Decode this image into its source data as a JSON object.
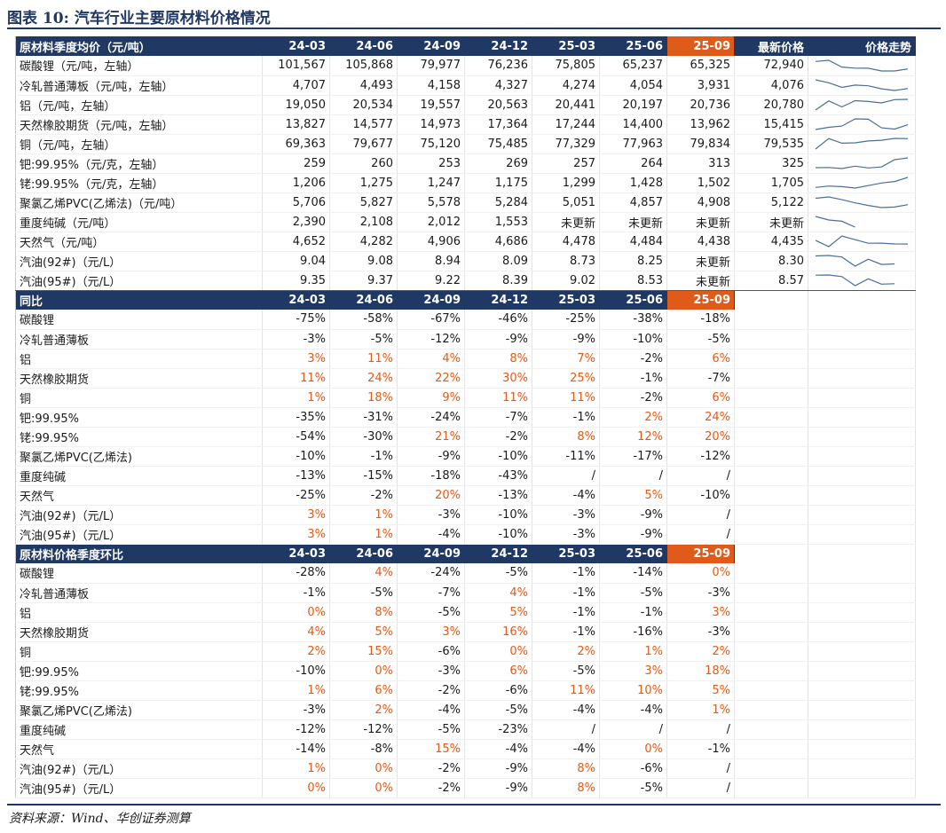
{
  "title": "图表 10:  汽车行业主要原材料价格情况",
  "source": "资料来源：Wind、华创证券测算",
  "colors": {
    "header_bg": "#1f3864",
    "highlight_bg": "#e05a1a",
    "positive": "#e05a1a",
    "spark": "#4a6e9a"
  },
  "section1": {
    "header": [
      "原材料季度均价（元/吨）",
      "24-03",
      "24-06",
      "24-09",
      "24-12",
      "25-03",
      "25-06",
      "25-09",
      "最新价格",
      "价格走势"
    ],
    "rows": [
      {
        "label": "碳酸锂（元/吨，左轴）",
        "values": [
          "101,567",
          "105,868",
          "79,977",
          "76,236",
          "75,805",
          "65,237",
          "65,325"
        ],
        "latest": "72,940",
        "trend": [
          101567,
          105868,
          79977,
          76236,
          75805,
          65237,
          65325,
          72940
        ]
      },
      {
        "label": "冷轧普通薄板（元/吨，左轴）",
        "values": [
          "4,707",
          "4,493",
          "4,158",
          "4,327",
          "4,274",
          "4,054",
          "3,931"
        ],
        "latest": "4,076",
        "trend": [
          4707,
          4493,
          4158,
          4327,
          4274,
          4054,
          3931,
          4076
        ]
      },
      {
        "label": "铝（元/吨，左轴）",
        "values": [
          "19,050",
          "20,534",
          "19,557",
          "20,563",
          "20,441",
          "20,197",
          "20,736"
        ],
        "latest": "20,780",
        "trend": [
          19050,
          20534,
          19557,
          20563,
          20441,
          20197,
          20736,
          20780
        ]
      },
      {
        "label": "天然橡胶期货（元/吨，左轴）",
        "values": [
          "13,827",
          "14,577",
          "14,973",
          "17,364",
          "17,244",
          "14,400",
          "13,962"
        ],
        "latest": "15,415",
        "trend": [
          13827,
          14577,
          14973,
          17364,
          17244,
          14400,
          13962,
          15415
        ]
      },
      {
        "label": "铜（元/吨，左轴）",
        "values": [
          "69,363",
          "79,677",
          "75,120",
          "75,485",
          "77,329",
          "77,963",
          "79,834"
        ],
        "latest": "79,535",
        "trend": [
          69363,
          79677,
          75120,
          75485,
          77329,
          77963,
          79834,
          79535
        ]
      },
      {
        "label": "钯:99.95%（元/克，左轴）",
        "values": [
          "259",
          "260",
          "253",
          "269",
          "257",
          "264",
          "313"
        ],
        "latest": "325",
        "trend": [
          259,
          260,
          253,
          269,
          257,
          264,
          313,
          325
        ]
      },
      {
        "label": "铑:99.95%（元/克，左轴）",
        "values": [
          "1,206",
          "1,275",
          "1,247",
          "1,175",
          "1,299",
          "1,428",
          "1,502"
        ],
        "latest": "1,705",
        "trend": [
          1206,
          1275,
          1247,
          1175,
          1299,
          1428,
          1502,
          1705
        ]
      },
      {
        "label": "聚氯乙烯PVC(乙烯法)（元/吨）",
        "values": [
          "5,706",
          "5,827",
          "5,578",
          "5,284",
          "5,051",
          "4,857",
          "4,908"
        ],
        "latest": "5,122",
        "trend": [
          5706,
          5827,
          5578,
          5284,
          5051,
          4857,
          4908,
          5122
        ]
      },
      {
        "label": "重度纯碱（元/吨）",
        "values": [
          "2,390",
          "2,108",
          "2,012",
          "1,553",
          "未更新",
          "未更新",
          "未更新"
        ],
        "latest": "未更新",
        "trend": [
          2390,
          2108,
          2012,
          1553
        ]
      },
      {
        "label": "天然气（元/吨）",
        "values": [
          "4,652",
          "4,282",
          "4,906",
          "4,686",
          "4,478",
          "4,484",
          "4,438"
        ],
        "latest": "4,435",
        "trend": [
          4652,
          4282,
          4906,
          4686,
          4478,
          4484,
          4438,
          4435
        ]
      },
      {
        "label": "汽油(92#)（元/L）",
        "values": [
          "9.04",
          "9.08",
          "8.94",
          "8.09",
          "8.73",
          "8.25",
          "未更新"
        ],
        "latest": "8.30",
        "trend": [
          9.04,
          9.08,
          8.94,
          8.09,
          8.73,
          8.25,
          8.3
        ]
      },
      {
        "label": "汽油(95#)（元/L）",
        "values": [
          "9.35",
          "9.37",
          "9.22",
          "8.39",
          "9.02",
          "8.53",
          "未更新"
        ],
        "latest": "8.57",
        "trend": [
          9.35,
          9.37,
          9.22,
          8.39,
          9.02,
          8.53,
          8.57
        ]
      }
    ]
  },
  "section2": {
    "header": [
      "同比",
      "24-03",
      "24-06",
      "24-09",
      "24-12",
      "25-03",
      "25-06",
      "25-09"
    ],
    "rows": [
      {
        "label": "碳酸锂",
        "values": [
          "-75%",
          "-58%",
          "-67%",
          "-46%",
          "-25%",
          "-38%",
          "-18%"
        ]
      },
      {
        "label": "冷轧普通薄板",
        "values": [
          "-3%",
          "-5%",
          "-12%",
          "-9%",
          "-9%",
          "-10%",
          "-5%"
        ]
      },
      {
        "label": "铝",
        "values": [
          "3%",
          "11%",
          "4%",
          "8%",
          "7%",
          "-2%",
          "6%"
        ]
      },
      {
        "label": "天然橡胶期货",
        "values": [
          "11%",
          "24%",
          "22%",
          "30%",
          "25%",
          "-1%",
          "-7%"
        ]
      },
      {
        "label": "铜",
        "values": [
          "1%",
          "18%",
          "9%",
          "11%",
          "11%",
          "-2%",
          "6%"
        ]
      },
      {
        "label": "钯:99.95%",
        "values": [
          "-35%",
          "-31%",
          "-24%",
          "-7%",
          "-1%",
          "2%",
          "24%"
        ]
      },
      {
        "label": "铑:99.95%",
        "values": [
          "-54%",
          "-30%",
          "21%",
          "-2%",
          "8%",
          "12%",
          "20%"
        ]
      },
      {
        "label": "聚氯乙烯PVC(乙烯法)",
        "values": [
          "-10%",
          "-1%",
          "-9%",
          "-10%",
          "-11%",
          "-17%",
          "-12%"
        ]
      },
      {
        "label": "重度纯碱",
        "values": [
          "-13%",
          "-15%",
          "-18%",
          "-43%",
          "/",
          "/",
          "/"
        ]
      },
      {
        "label": "天然气",
        "values": [
          "-25%",
          "-2%",
          "20%",
          "-13%",
          "-4%",
          "5%",
          "-10%"
        ]
      },
      {
        "label": "汽油(92#)（元/L）",
        "values": [
          "3%",
          "1%",
          "-3%",
          "-10%",
          "-3%",
          "-9%",
          "/"
        ]
      },
      {
        "label": "汽油(95#)（元/L）",
        "values": [
          "3%",
          "1%",
          "-4%",
          "-10%",
          "-3%",
          "-9%",
          "/"
        ]
      }
    ]
  },
  "section3": {
    "header": [
      "原材料价格季度环比",
      "24-03",
      "24-06",
      "24-09",
      "24-12",
      "25-03",
      "25-06",
      "25-09"
    ],
    "rows": [
      {
        "label": "碳酸锂",
        "values": [
          "-28%",
          "4%",
          "-24%",
          "-5%",
          "-1%",
          "-14%",
          "0%"
        ]
      },
      {
        "label": "冷轧普通薄板",
        "values": [
          "-1%",
          "-5%",
          "-7%",
          "4%",
          "-1%",
          "-5%",
          "-3%"
        ]
      },
      {
        "label": "铝",
        "values": [
          "0%",
          "8%",
          "-5%",
          "5%",
          "-1%",
          "-1%",
          "3%"
        ]
      },
      {
        "label": "天然橡胶期货",
        "values": [
          "4%",
          "5%",
          "3%",
          "16%",
          "-1%",
          "-16%",
          "-3%"
        ]
      },
      {
        "label": "铜",
        "values": [
          "2%",
          "15%",
          "-6%",
          "0%",
          "2%",
          "1%",
          "2%"
        ]
      },
      {
        "label": "钯:99.95%",
        "values": [
          "-10%",
          "0%",
          "-3%",
          "6%",
          "-5%",
          "3%",
          "18%"
        ]
      },
      {
        "label": "铑:99.95%",
        "values": [
          "1%",
          "6%",
          "-2%",
          "-6%",
          "11%",
          "10%",
          "5%"
        ]
      },
      {
        "label": "聚氯乙烯PVC(乙烯法)",
        "values": [
          "-3%",
          "2%",
          "-4%",
          "-5%",
          "-4%",
          "-4%",
          "1%"
        ]
      },
      {
        "label": "重度纯碱",
        "values": [
          "-12%",
          "-12%",
          "-5%",
          "-23%",
          "/",
          "/",
          "/"
        ]
      },
      {
        "label": "天然气",
        "values": [
          "-14%",
          "-8%",
          "15%",
          "-4%",
          "-4%",
          "0%",
          "-1%"
        ]
      },
      {
        "label": "汽油(92#)（元/L）",
        "values": [
          "1%",
          "0%",
          "-2%",
          "-9%",
          "8%",
          "-6%",
          "/"
        ]
      },
      {
        "label": "汽油(95#)（元/L）",
        "values": [
          "0%",
          "0%",
          "-2%",
          "-9%",
          "8%",
          "-5%",
          "/"
        ]
      }
    ]
  }
}
